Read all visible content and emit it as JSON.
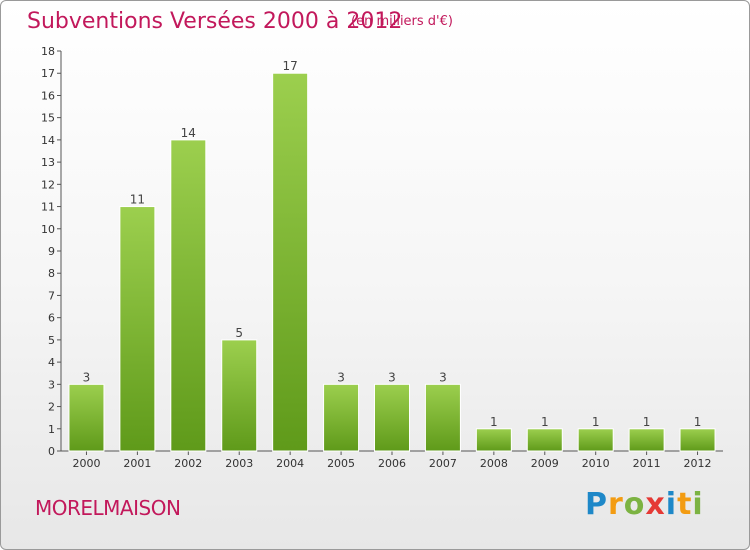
{
  "header": {
    "title": "Subventions Versées 2000 à 2012",
    "unit": "(en milliers d'€)"
  },
  "footer": {
    "commune": "MORELMAISON",
    "logo": {
      "text": "Proxiti",
      "letters": [
        {
          "char": "P",
          "color": "#1e88c8"
        },
        {
          "char": "r",
          "color": "#f39c12"
        },
        {
          "char": "o",
          "color": "#7cb342"
        },
        {
          "char": "x",
          "color": "#e53935"
        },
        {
          "char": "i",
          "color": "#1e88c8"
        },
        {
          "char": "t",
          "color": "#f39c12"
        },
        {
          "char": "i",
          "color": "#7cb342"
        }
      ]
    }
  },
  "colors": {
    "accent": "#c2185b",
    "bar_top": "#9ccf4e",
    "bar_bottom": "#5f9a1a",
    "axis": "#555555"
  },
  "chart_data": {
    "type": "bar",
    "title": "Subventions Versées 2000 à 2012",
    "subtitle": "(en milliers d'€)",
    "categories": [
      "2000",
      "2001",
      "2002",
      "2003",
      "2004",
      "2005",
      "2006",
      "2007",
      "2008",
      "2009",
      "2010",
      "2011",
      "2012"
    ],
    "values": [
      3,
      11,
      14,
      5,
      17,
      3,
      3,
      3,
      1,
      1,
      1,
      1,
      1
    ],
    "data_labels": [
      "3",
      "11",
      "14",
      "5",
      "17",
      "3",
      "3",
      "3",
      "1",
      "1",
      "1",
      "1",
      "1"
    ],
    "yticks": [
      "0",
      "1",
      "2",
      "3",
      "4",
      "5",
      "6",
      "7",
      "8",
      "9",
      "10",
      "11",
      "12",
      "13",
      "14",
      "15",
      "16",
      "17",
      "18"
    ],
    "ylim": [
      0,
      18
    ],
    "xlabel": "",
    "ylabel": "",
    "grid": false,
    "legend": "none"
  }
}
